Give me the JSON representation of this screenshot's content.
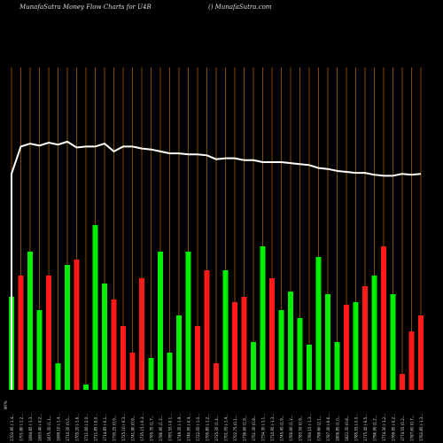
{
  "header": {
    "left": "MunafaSutra  Money Flow  Charts for U4B",
    "right": "() MunafaSutra.com"
  },
  "colors": {
    "background": "#000000",
    "gridline": "#b06a00",
    "up": "#00ee00",
    "down": "#ff1a1a",
    "line": "#ffffff",
    "text": "#dddddd"
  },
  "chart_data": {
    "type": "bar",
    "title": "MunafaSutra  Money Flow  Charts for U4B",
    "categories": [
      "1703.95 (-1.4...",
      "1701.80 (-1.2...",
      "1694.85 (-1.3...",
      "1693.40 (-0.2...",
      "1675.35 (1.1...",
      "1699.10 (-1.4...",
      "1710.35 (0.5...",
      "1705.20 (-1.6...",
      "1711.60 (-2.0...",
      "1711.85 (-0.0...",
      "1714.85 (-0.1...",
      "1730.25 (0.9...",
      "1725.10 (-0.3...",
      "1741.90 (0.9...",
      "1735.15 (-0.3...",
      "1765.35 (1.7...",
      "1786.95 (1.2...",
      "1783.55 (-0.1...",
      "1749.35 (-1.9...",
      "1740.95 (-0.4...",
      "1722.05 (-1.0...",
      "1700.80 (-1.2...",
      "1725.35 (1.4...",
      "1701.05 (-1.4...",
      "1702.75 (0.1...",
      "1736.60 (1.9...",
      "1751.30 (0.8...",
      "1734.30 (-1.1...",
      "1710.95 (-1.3...",
      "1745.45 (1.9...",
      "1766.60 (1.2...",
      "1783.50 (0.9...",
      "1760.15 (-1.3...",
      "1798.60 (2.1...",
      "1787.30 (-0.6...",
      "1806.85 (1.0...",
      "1822.35 (0.8...",
      "1785.55 (-2.0...",
      "1775.45 (-0.5...",
      "1796.90 (1.2...",
      "1774.30 (-1.2...",
      "1769.95 (-0.2...",
      "1774.55 (0.2...",
      "1787.60 (0.7...",
      "1762.85 (-1.3..."
    ],
    "bar_values": [
      35,
      43,
      52,
      30,
      43,
      10,
      47,
      49,
      2,
      62,
      40,
      34,
      24,
      14,
      42,
      12,
      52,
      14,
      28,
      52,
      24,
      45,
      10,
      45,
      33,
      35,
      18,
      54,
      42,
      30,
      37,
      27,
      17,
      50,
      36,
      18,
      32,
      33,
      39,
      43,
      54,
      36,
      6,
      22,
      28
    ],
    "bar_directions": [
      "up",
      "down",
      "up",
      "up",
      "down",
      "up",
      "up",
      "down",
      "up",
      "up",
      "up",
      "down",
      "down",
      "down",
      "down",
      "up",
      "up",
      "up",
      "up",
      "up",
      "down",
      "down",
      "down",
      "up",
      "down",
      "down",
      "up",
      "up",
      "down",
      "up",
      "up",
      "up",
      "up",
      "up",
      "up",
      "up",
      "down",
      "up",
      "down",
      "up",
      "down",
      "up",
      "down",
      "down",
      "down"
    ],
    "line_values": [
      58,
      86,
      89,
      87,
      90,
      88,
      91,
      85,
      86,
      86,
      89,
      81,
      86,
      86,
      84,
      83,
      81,
      79,
      79,
      78,
      78,
      77,
      73,
      74,
      74,
      72,
      72,
      70,
      70,
      70,
      69,
      68,
      67,
      64,
      63,
      61,
      60,
      59,
      59,
      57,
      56,
      56,
      58,
      57,
      58
    ],
    "axis_label_first": "MF%"
  }
}
